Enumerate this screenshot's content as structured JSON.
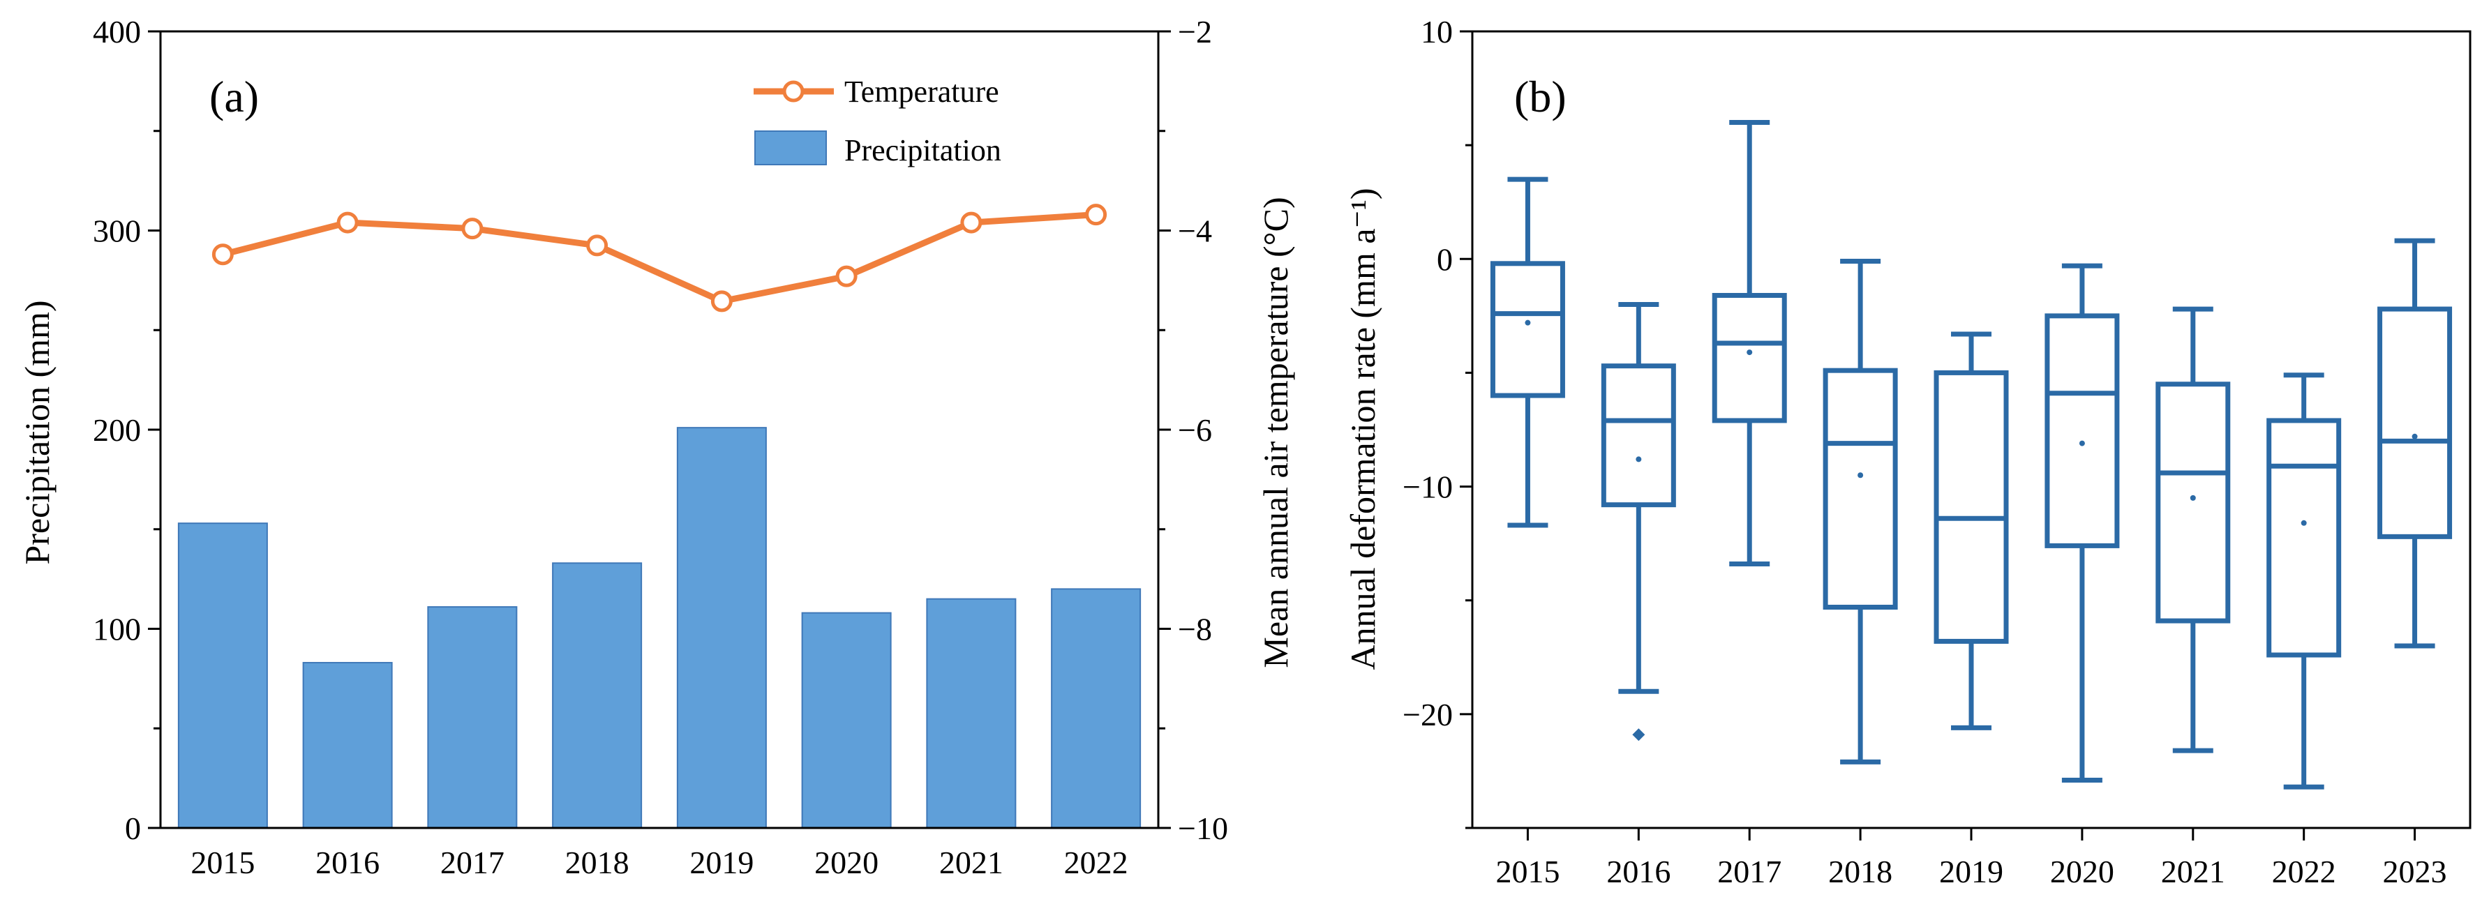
{
  "colors": {
    "bar_fill": "#5f9fd9",
    "bar_stroke": "#3f78b8",
    "temperature": "#f07f3c",
    "box": "#2b6aa6",
    "axis": "#000000"
  },
  "chart_data": [
    {
      "type": "bar",
      "panel_label": "(a)",
      "categories": [
        "2015",
        "2016",
        "2017",
        "2018",
        "2019",
        "2020",
        "2021",
        "2022"
      ],
      "ylabel": "Precipitation (mm)",
      "ylim": [
        0,
        400
      ],
      "yticks": [
        "0",
        "100",
        "200",
        "300",
        "400"
      ],
      "y2label": "Mean annual air temperature (°C)",
      "y2lim": [
        -10,
        -2
      ],
      "y2ticks": [
        "−10",
        "−8",
        "−6",
        "−4",
        "−2"
      ],
      "legend": {
        "placement": "top-right",
        "line_label": "Temperature",
        "bar_label": "Precipitation"
      },
      "series": [
        {
          "name": "Precipitation",
          "kind": "bar",
          "axis": "left",
          "values": [
            153,
            83,
            111,
            133,
            201,
            108,
            115,
            120
          ]
        },
        {
          "name": "Temperature",
          "kind": "line",
          "axis": "right",
          "values": [
            -4.24,
            -3.92,
            -3.98,
            -4.15,
            -4.71,
            -4.46,
            -3.92,
            -3.84
          ]
        }
      ]
    },
    {
      "type": "box",
      "panel_label": "(b)",
      "categories": [
        "2015",
        "2016",
        "2017",
        "2018",
        "2019",
        "2020",
        "2021",
        "2022",
        "2023"
      ],
      "ylabel": "Annual deformation rate (mm a⁻¹)",
      "ylim": [
        -25,
        10
      ],
      "yticks": [
        "−20",
        "−10",
        "0",
        "10"
      ],
      "boxes": [
        {
          "whisker_low": -11.7,
          "q1": -6.0,
          "median": -2.4,
          "q3": -0.2,
          "whisker_high": 3.5,
          "mean": -2.8,
          "outliers": []
        },
        {
          "whisker_low": -19.0,
          "q1": -10.8,
          "median": -7.1,
          "q3": -4.7,
          "whisker_high": -2.0,
          "mean": -8.8,
          "outliers": [
            -20.9
          ]
        },
        {
          "whisker_low": -13.4,
          "q1": -7.1,
          "median": -3.7,
          "q3": -1.6,
          "whisker_high": 6.0,
          "mean": -4.1,
          "outliers": []
        },
        {
          "whisker_low": -22.1,
          "q1": -15.3,
          "median": -8.1,
          "q3": -4.9,
          "whisker_high": -0.1,
          "mean": -9.5,
          "outliers": []
        },
        {
          "whisker_low": -20.6,
          "q1": -16.8,
          "median": -11.4,
          "q3": -5.0,
          "whisker_high": -3.3,
          "mean": null,
          "outliers": []
        },
        {
          "whisker_low": -22.9,
          "q1": -12.6,
          "median": -5.9,
          "q3": -2.5,
          "whisker_high": -0.3,
          "mean": -8.1,
          "outliers": []
        },
        {
          "whisker_low": -21.6,
          "q1": -15.9,
          "median": -9.4,
          "q3": -5.5,
          "whisker_high": -2.2,
          "mean": -10.5,
          "outliers": []
        },
        {
          "whisker_low": -23.2,
          "q1": -17.4,
          "median": -9.1,
          "q3": -7.1,
          "whisker_high": -5.1,
          "mean": -11.6,
          "outliers": []
        },
        {
          "whisker_low": -17.0,
          "q1": -12.2,
          "median": -8.0,
          "q3": -2.2,
          "whisker_high": 0.8,
          "mean": -7.8,
          "outliers": []
        }
      ]
    }
  ]
}
